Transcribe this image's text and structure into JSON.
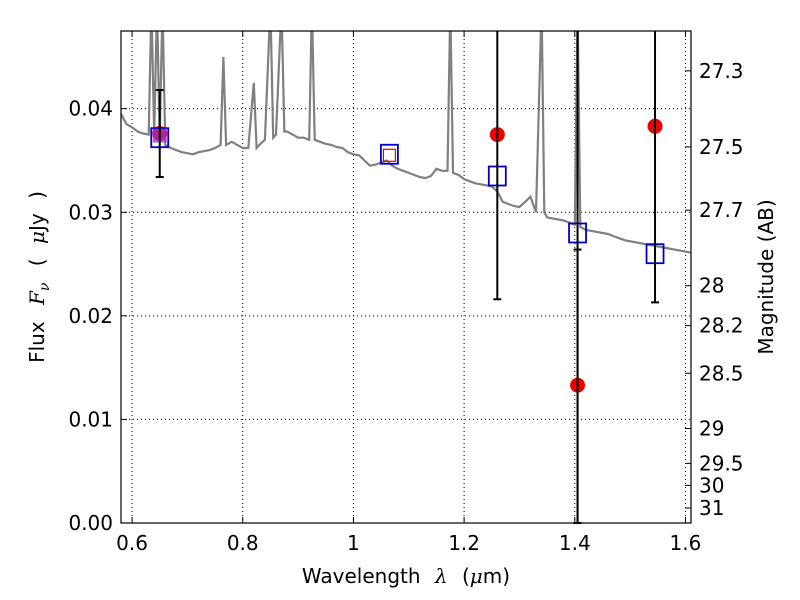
{
  "chart_data": {
    "type": "scatter",
    "xlim": [
      0.58,
      1.61
    ],
    "ylim": [
      0.0,
      0.0475
    ],
    "x_ticks": [
      0.6,
      0.8,
      1.0,
      1.2,
      1.4,
      1.6
    ],
    "x_tick_labels": [
      "0.6",
      "0.8",
      "1",
      "1.2",
      "1.4",
      "1.6"
    ],
    "y_ticks": [
      0.0,
      0.01,
      0.02,
      0.03,
      0.04
    ],
    "y_tick_labels": [
      "0.00",
      "0.01",
      "0.02",
      "0.03",
      "0.04"
    ],
    "y2_ticks": [
      27.3,
      27.5,
      27.7,
      28.0,
      28.2,
      28.5,
      29.0,
      29.5,
      30.0,
      31.0
    ],
    "y2_tick_labels": [
      "27.3",
      "27.5",
      "27.7",
      "28",
      "28.2",
      "28.5",
      "29",
      "29.5",
      "30",
      "31"
    ],
    "grid": true,
    "xlabel": {
      "prefix": "Wavelength",
      "symbol": "λ",
      "unit_open": "(",
      "unit_mu": "μ",
      "unit_rest": "m)"
    },
    "ylabel": {
      "prefix": "Flux",
      "symbol": "F",
      "sub": "ν",
      "unit_open": "(",
      "unit_mu": "μ",
      "unit_rest": "Jy",
      "unit_close": ")"
    },
    "y2label": "Magnitude (AB)",
    "model_spectrum": {
      "color": "#808080",
      "x": [
        0.58,
        0.59,
        0.6,
        0.61,
        0.62,
        0.63,
        0.635,
        0.64,
        0.645,
        0.65,
        0.655,
        0.66,
        0.67,
        0.68,
        0.69,
        0.7,
        0.71,
        0.72,
        0.73,
        0.74,
        0.75,
        0.76,
        0.765,
        0.77,
        0.78,
        0.79,
        0.8,
        0.81,
        0.82,
        0.825,
        0.83,
        0.84,
        0.85,
        0.855,
        0.86,
        0.87,
        0.875,
        0.88,
        0.89,
        0.9,
        0.91,
        0.92,
        0.925,
        0.93,
        0.94,
        0.95,
        0.96,
        0.97,
        0.98,
        0.99,
        1.0,
        1.01,
        1.02,
        1.03,
        1.04,
        1.05,
        1.06,
        1.07,
        1.08,
        1.09,
        1.1,
        1.11,
        1.12,
        1.13,
        1.14,
        1.15,
        1.16,
        1.17,
        1.175,
        1.18,
        1.19,
        1.2,
        1.21,
        1.22,
        1.23,
        1.24,
        1.25,
        1.26,
        1.27,
        1.28,
        1.29,
        1.3,
        1.31,
        1.32,
        1.33,
        1.34,
        1.345,
        1.35,
        1.36,
        1.37,
        1.38,
        1.39,
        1.4,
        1.405,
        1.41,
        1.42,
        1.43,
        1.44,
        1.45,
        1.46,
        1.47,
        1.48,
        1.49,
        1.5,
        1.51,
        1.52,
        1.53,
        1.54,
        1.55,
        1.56,
        1.57,
        1.58,
        1.59,
        1.6,
        1.61
      ],
      "y": [
        0.0395,
        0.0385,
        0.0382,
        0.0378,
        0.0376,
        0.0375,
        0.05,
        0.0375,
        0.05,
        0.0372,
        0.05,
        0.0365,
        0.0362,
        0.036,
        0.0358,
        0.0357,
        0.0356,
        0.0358,
        0.0359,
        0.036,
        0.0362,
        0.0365,
        0.045,
        0.0365,
        0.0368,
        0.0365,
        0.0362,
        0.0362,
        0.0425,
        0.0362,
        0.0365,
        0.037,
        0.05,
        0.0372,
        0.0375,
        0.05,
        0.0378,
        0.0378,
        0.0375,
        0.0372,
        0.0372,
        0.037,
        0.05,
        0.037,
        0.0368,
        0.0366,
        0.0365,
        0.0363,
        0.0362,
        0.0358,
        0.0356,
        0.0355,
        0.035,
        0.0345,
        0.0346,
        0.0348,
        0.035,
        0.0345,
        0.0342,
        0.034,
        0.0338,
        0.0336,
        0.0334,
        0.0333,
        0.0335,
        0.0342,
        0.034,
        0.034,
        0.05,
        0.0338,
        0.0336,
        0.0332,
        0.033,
        0.0328,
        0.0327,
        0.0326,
        0.0325,
        0.032,
        0.031,
        0.0308,
        0.0306,
        0.0305,
        0.031,
        0.0315,
        0.03,
        0.05,
        0.03,
        0.0295,
        0.0294,
        0.0293,
        0.0292,
        0.029,
        0.0288,
        0.05,
        0.0286,
        0.0283,
        0.0282,
        0.0281,
        0.028,
        0.0279,
        0.0277,
        0.0275,
        0.0273,
        0.0272,
        0.0271,
        0.027,
        0.0269,
        0.0268,
        0.0267,
        0.0266,
        0.0265,
        0.0264,
        0.0263,
        0.0262,
        0.0261
      ]
    },
    "series": [
      {
        "marker": "circle",
        "color": "#ee0000",
        "points": [
          {
            "x": 0.65,
            "y": 0.0376,
            "yerr": [
              0.0042,
              0.0042
            ]
          },
          {
            "x": 1.26,
            "y": 0.0375
          },
          {
            "x": 1.405,
            "y": 0.0133,
            "yerr": [
              0.0133,
              0.0131
            ]
          },
          {
            "x": 1.545,
            "y": 0.0383
          }
        ]
      },
      {
        "marker": "open-square",
        "color": "#0000cc",
        "points": [
          {
            "x": 0.65,
            "y": 0.0372
          },
          {
            "x": 1.065,
            "y": 0.0356
          },
          {
            "x": 1.26,
            "y": 0.0335,
            "yerr": [
              0.0119,
              0.0145
            ]
          },
          {
            "x": 1.405,
            "y": 0.028,
            "yerr": [
              0.028,
              0.0195
            ]
          },
          {
            "x": 1.545,
            "y": 0.026,
            "yerr": [
              0.0047,
              0.0215
            ]
          }
        ]
      },
      {
        "marker": "open-square-small",
        "color": "#ee0000",
        "points": [
          {
            "x": 1.065,
            "y": 0.0355
          }
        ]
      },
      {
        "marker": "filled-square-overlay",
        "color": "#9933cc",
        "points": [
          {
            "x": 0.65,
            "y": 0.0374
          }
        ]
      }
    ]
  }
}
